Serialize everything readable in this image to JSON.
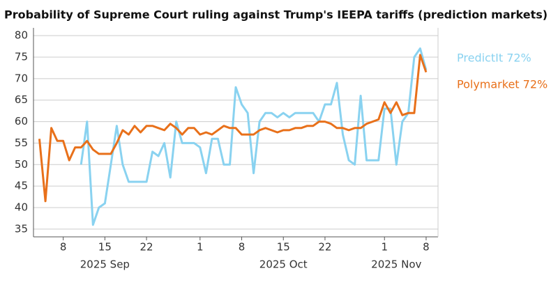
{
  "chart_data": {
    "type": "line",
    "title": "Probability of Supreme Court ruling against Trump's IEEPA tariffs (prediction markets)",
    "x": [
      "2025-09-04",
      "2025-09-05",
      "2025-09-06",
      "2025-09-07",
      "2025-09-08",
      "2025-09-09",
      "2025-09-10",
      "2025-09-11",
      "2025-09-12",
      "2025-09-13",
      "2025-09-14",
      "2025-09-15",
      "2025-09-16",
      "2025-09-17",
      "2025-09-18",
      "2025-09-19",
      "2025-09-20",
      "2025-09-21",
      "2025-09-22",
      "2025-09-23",
      "2025-09-24",
      "2025-09-25",
      "2025-09-26",
      "2025-09-27",
      "2025-09-28",
      "2025-09-29",
      "2025-09-30",
      "2025-10-01",
      "2025-10-02",
      "2025-10-03",
      "2025-10-04",
      "2025-10-05",
      "2025-10-06",
      "2025-10-07",
      "2025-10-08",
      "2025-10-09",
      "2025-10-10",
      "2025-10-11",
      "2025-10-12",
      "2025-10-13",
      "2025-10-14",
      "2025-10-15",
      "2025-10-16",
      "2025-10-17",
      "2025-10-18",
      "2025-10-19",
      "2025-10-20",
      "2025-10-21",
      "2025-10-22",
      "2025-10-23",
      "2025-10-24",
      "2025-10-25",
      "2025-10-26",
      "2025-10-27",
      "2025-10-28",
      "2025-10-29",
      "2025-10-30",
      "2025-10-31",
      "2025-11-01",
      "2025-11-02",
      "2025-11-03",
      "2025-11-04",
      "2025-11-05",
      "2025-11-06",
      "2025-11-07",
      "2025-11-08"
    ],
    "series": [
      {
        "name": "PredictIt 72%",
        "color": "#89d2f0",
        "values": [
          null,
          null,
          null,
          null,
          null,
          null,
          null,
          50,
          60,
          36,
          40,
          41,
          50,
          59,
          50,
          46,
          46,
          46,
          46,
          53,
          52,
          55,
          47,
          60,
          55,
          55,
          55,
          54,
          48,
          56,
          56,
          50,
          50,
          68,
          64,
          62,
          48,
          60,
          62,
          62,
          61,
          62,
          61,
          62,
          62,
          62,
          62,
          60,
          64,
          64,
          69,
          57,
          51,
          50,
          66,
          51,
          51,
          51,
          63,
          63,
          50,
          60,
          62,
          75,
          77,
          72
        ]
      },
      {
        "name": "Polymarket 72%",
        "color": "#e8701a",
        "values": [
          56,
          41.5,
          58.5,
          55.5,
          55.5,
          51,
          54,
          54,
          55.5,
          53.5,
          52.5,
          52.5,
          52.5,
          55,
          58,
          57,
          59,
          57.5,
          59,
          59,
          58.5,
          58,
          59.5,
          58.5,
          57,
          58.5,
          58.5,
          57,
          57.5,
          57,
          58,
          59,
          58.5,
          58.5,
          57,
          57,
          57,
          58,
          58.5,
          58,
          57.5,
          58,
          58,
          58.5,
          58.5,
          59,
          59,
          60,
          60,
          59.5,
          58.5,
          58.5,
          58,
          58.5,
          58.5,
          59.5,
          60,
          60.5,
          64.5,
          62,
          64.5,
          61.5,
          62,
          62,
          75.5,
          71.5
        ]
      }
    ],
    "xlim": [
      "2025-09-03",
      "2025-11-10"
    ],
    "xticks": [
      {
        "value": "2025-09-08",
        "label": "8"
      },
      {
        "value": "2025-09-15",
        "label": "15"
      },
      {
        "value": "2025-09-22",
        "label": "22"
      },
      {
        "value": "2025-10-01",
        "label": "1"
      },
      {
        "value": "2025-10-08",
        "label": "8"
      },
      {
        "value": "2025-10-15",
        "label": "15"
      },
      {
        "value": "2025-10-22",
        "label": "22"
      },
      {
        "value": "2025-11-01",
        "label": "1"
      },
      {
        "value": "2025-11-08",
        "label": "8"
      }
    ],
    "month_labels": [
      {
        "value": "2025-09-15",
        "label": "2025 Sep"
      },
      {
        "value": "2025-10-15",
        "label": "2025 Oct"
      },
      {
        "value": "2025-11-03",
        "label": "2025 Nov"
      }
    ],
    "ylim": [
      33.2,
      81.8
    ],
    "yticks": [
      35,
      40,
      45,
      50,
      55,
      60,
      65,
      70,
      75,
      80
    ],
    "grid": true
  }
}
